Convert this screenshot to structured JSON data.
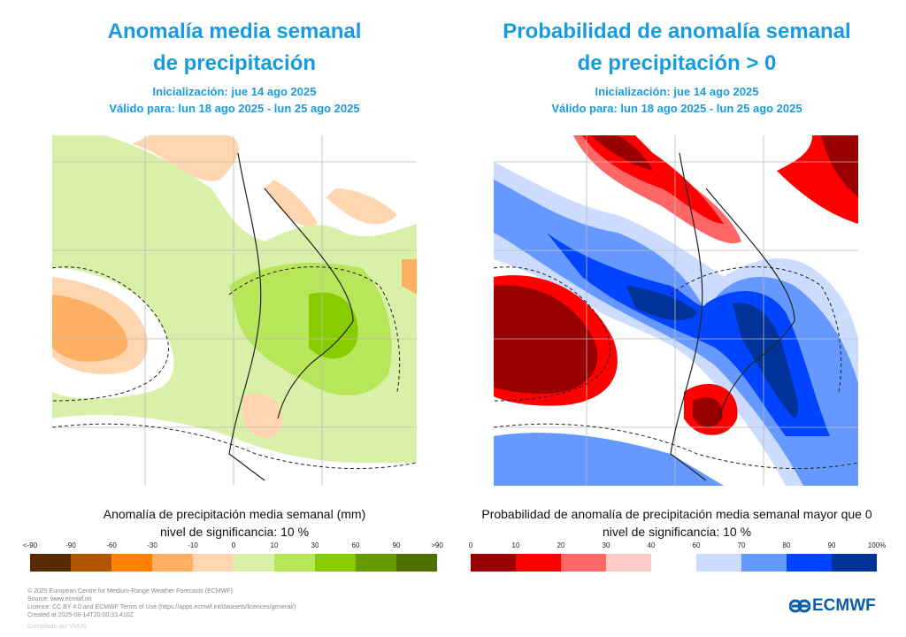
{
  "left": {
    "title": [
      "Anomalía media semanal",
      "de precipitación"
    ],
    "init": "Inicialización: jue 14 ago 2025",
    "valid": "Válido para: lun 18 ago 2025 - lun 25 ago 2025",
    "caption": "Anomalía de precipitación media semanal (mm)",
    "significance": "nivel de significancia: 10 %"
  },
  "right": {
    "title": [
      "Probabilidad de anomalía semanal",
      "de precipitación > 0"
    ],
    "init": "Inicialización: jue 14 ago 2025",
    "valid": "Válido para: lun 18 ago 2025 - lun 25 ago 2025",
    "caption": "Probabilidad de anomalía de precipitación media semanal mayor que 0",
    "significance": "nivel de significancia: 10 %"
  },
  "chart_data": [
    {
      "type": "heatmap",
      "title": "Anomalía media semanal de precipitación",
      "legend": {
        "tick_labels": [
          "<-90",
          "-90",
          "-60",
          "-30",
          "-10",
          "0",
          "10",
          "30",
          "60",
          "90",
          ">90"
        ],
        "colors": [
          "#582a00",
          "#b05500",
          "#ff7f00",
          "#ffaf62",
          "#ffd6b0",
          "#d9f0a8",
          "#b8e65a",
          "#88cc00",
          "#669900",
          "#4d7000"
        ]
      }
    },
    {
      "type": "heatmap",
      "title": "Probabilidad de anomalía semanal de precipitación > 0",
      "legend": {
        "tick_labels": [
          "0",
          "10",
          "20",
          "30",
          "40",
          "60",
          "70",
          "80",
          "90",
          "100%"
        ],
        "colors_low": [
          "#990000",
          "#ff0000",
          "#ff6666",
          "#ffcccc"
        ],
        "colors_high": [
          "#ccdcff",
          "#6699ff",
          "#0044ff",
          "#003399"
        ]
      }
    }
  ],
  "footer": {
    "lines": [
      "© 2025 European Centre for Medium-Range Weather Forecasts (ECMWF)",
      "Source: www.ecmwf.int",
      "Licence: CC BY 4.0 and ECMWF Terms of Use (https://apps.ecmwf.int/datasets/licences/general/)",
      "Created at 2025-08-14T20:00:33.410Z"
    ],
    "compiled": "Compilado por VVUG",
    "logo": "ECMWF"
  }
}
